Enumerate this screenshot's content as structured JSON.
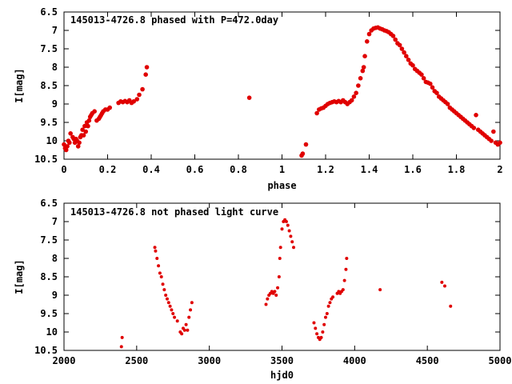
{
  "colors": {
    "points": "#e00000",
    "axes": "#000000",
    "background": "#ffffff"
  },
  "chart_data": [
    {
      "type": "scatter",
      "title": "145013-4726.8 phased with P=472.0day",
      "xlabel": "phase",
      "ylabel": "I[mag]",
      "xlim": [
        0,
        2
      ],
      "ylim": [
        6.5,
        10.5
      ],
      "y_inverted": true,
      "grid": false,
      "legend": "none",
      "xticks": [
        0,
        0.2,
        0.4,
        0.6,
        0.8,
        1,
        1.2,
        1.4,
        1.6,
        1.8,
        2
      ],
      "xtick_labels": [
        "0",
        "0.2",
        "0.4",
        "0.6",
        "0.8",
        "1",
        "1.2",
        "1.4",
        "1.6",
        "1.8",
        "2"
      ],
      "yticks": [
        6.5,
        7,
        7.5,
        8,
        8.5,
        9,
        9.5,
        10,
        10.5
      ],
      "ytick_labels": [
        "6.5",
        "7",
        "7.5",
        "8",
        "8.5",
        "9",
        "9.5",
        "10",
        "10.5"
      ],
      "points": [
        [
          0.0,
          10.1
        ],
        [
          0.005,
          10.2
        ],
        [
          0.01,
          10.25
        ],
        [
          0.015,
          10.15
        ],
        [
          0.02,
          10.0
        ],
        [
          0.025,
          10.05
        ],
        [
          0.03,
          9.8
        ],
        [
          0.04,
          9.9
        ],
        [
          0.045,
          9.95
        ],
        [
          0.05,
          10.05
        ],
        [
          0.055,
          9.95
        ],
        [
          0.06,
          10.0
        ],
        [
          0.065,
          10.15
        ],
        [
          0.07,
          10.05
        ],
        [
          0.075,
          9.9
        ],
        [
          0.08,
          9.85
        ],
        [
          0.085,
          9.7
        ],
        [
          0.09,
          9.85
        ],
        [
          0.095,
          9.6
        ],
        [
          0.1,
          9.75
        ],
        [
          0.105,
          9.5
        ],
        [
          0.11,
          9.6
        ],
        [
          0.115,
          9.45
        ],
        [
          0.12,
          9.35
        ],
        [
          0.125,
          9.3
        ],
        [
          0.13,
          9.25
        ],
        [
          0.14,
          9.2
        ],
        [
          0.15,
          9.45
        ],
        [
          0.16,
          9.4
        ],
        [
          0.165,
          9.35
        ],
        [
          0.17,
          9.3
        ],
        [
          0.175,
          9.25
        ],
        [
          0.18,
          9.2
        ],
        [
          0.19,
          9.15
        ],
        [
          0.2,
          9.15
        ],
        [
          0.21,
          9.1
        ],
        [
          0.25,
          8.97
        ],
        [
          0.26,
          8.93
        ],
        [
          0.27,
          8.95
        ],
        [
          0.28,
          8.92
        ],
        [
          0.29,
          8.95
        ],
        [
          0.3,
          8.9
        ],
        [
          0.31,
          8.97
        ],
        [
          0.32,
          8.93
        ],
        [
          0.335,
          8.87
        ],
        [
          0.345,
          8.75
        ],
        [
          0.36,
          8.6
        ],
        [
          0.375,
          8.2
        ],
        [
          0.38,
          8.0
        ],
        [
          0.85,
          8.83
        ],
        [
          1.09,
          10.4
        ],
        [
          1.095,
          10.35
        ],
        [
          1.11,
          10.1
        ],
        [
          1.16,
          9.25
        ],
        [
          1.17,
          9.15
        ],
        [
          1.18,
          9.12
        ],
        [
          1.19,
          9.1
        ],
        [
          1.2,
          9.05
        ],
        [
          1.21,
          9.0
        ],
        [
          1.22,
          8.97
        ],
        [
          1.23,
          8.95
        ],
        [
          1.24,
          8.93
        ],
        [
          1.25,
          8.95
        ],
        [
          1.26,
          8.92
        ],
        [
          1.27,
          8.95
        ],
        [
          1.28,
          8.9
        ],
        [
          1.29,
          8.95
        ],
        [
          1.3,
          9.0
        ],
        [
          1.31,
          8.95
        ],
        [
          1.32,
          8.9
        ],
        [
          1.33,
          8.8
        ],
        [
          1.34,
          8.7
        ],
        [
          1.35,
          8.5
        ],
        [
          1.36,
          8.3
        ],
        [
          1.37,
          8.1
        ],
        [
          1.375,
          8.0
        ],
        [
          1.38,
          7.7
        ],
        [
          1.39,
          7.3
        ],
        [
          1.4,
          7.1
        ],
        [
          1.41,
          7.0
        ],
        [
          1.42,
          6.95
        ],
        [
          1.43,
          6.93
        ],
        [
          1.44,
          6.92
        ],
        [
          1.45,
          6.95
        ],
        [
          1.46,
          6.97
        ],
        [
          1.47,
          7.0
        ],
        [
          1.48,
          7.02
        ],
        [
          1.49,
          7.05
        ],
        [
          1.5,
          7.1
        ],
        [
          1.51,
          7.15
        ],
        [
          1.52,
          7.25
        ],
        [
          1.53,
          7.35
        ],
        [
          1.54,
          7.4
        ],
        [
          1.55,
          7.5
        ],
        [
          1.56,
          7.6
        ],
        [
          1.57,
          7.7
        ],
        [
          1.58,
          7.8
        ],
        [
          1.59,
          7.9
        ],
        [
          1.6,
          7.95
        ],
        [
          1.61,
          8.05
        ],
        [
          1.62,
          8.1
        ],
        [
          1.63,
          8.15
        ],
        [
          1.64,
          8.2
        ],
        [
          1.65,
          8.3
        ],
        [
          1.66,
          8.4
        ],
        [
          1.67,
          8.42
        ],
        [
          1.68,
          8.45
        ],
        [
          1.69,
          8.55
        ],
        [
          1.7,
          8.65
        ],
        [
          1.71,
          8.7
        ],
        [
          1.72,
          8.8
        ],
        [
          1.73,
          8.85
        ],
        [
          1.74,
          8.9
        ],
        [
          1.75,
          8.95
        ],
        [
          1.76,
          9.0
        ],
        [
          1.77,
          9.1
        ],
        [
          1.78,
          9.15
        ],
        [
          1.79,
          9.2
        ],
        [
          1.8,
          9.25
        ],
        [
          1.81,
          9.3
        ],
        [
          1.82,
          9.35
        ],
        [
          1.83,
          9.4
        ],
        [
          1.84,
          9.45
        ],
        [
          1.85,
          9.5
        ],
        [
          1.86,
          9.55
        ],
        [
          1.87,
          9.6
        ],
        [
          1.88,
          9.65
        ],
        [
          1.89,
          9.3
        ],
        [
          1.9,
          9.7
        ],
        [
          1.91,
          9.75
        ],
        [
          1.92,
          9.8
        ],
        [
          1.93,
          9.85
        ],
        [
          1.94,
          9.9
        ],
        [
          1.95,
          9.95
        ],
        [
          1.96,
          10.0
        ],
        [
          1.97,
          9.75
        ],
        [
          1.98,
          10.05
        ],
        [
          1.99,
          10.1
        ],
        [
          2.0,
          10.05
        ]
      ]
    },
    {
      "type": "scatter",
      "title": "145013-4726.8 not phased light curve",
      "xlabel": "hjd0",
      "ylabel": "I[mag]",
      "xlim": [
        2000,
        5000
      ],
      "ylim": [
        6.5,
        10.5
      ],
      "y_inverted": true,
      "grid": false,
      "legend": "none",
      "xticks": [
        2000,
        2500,
        3000,
        3500,
        4000,
        4500,
        5000
      ],
      "xtick_labels": [
        "2000",
        "2500",
        "3000",
        "3500",
        "4000",
        "4500",
        "5000"
      ],
      "yticks": [
        6.5,
        7,
        7.5,
        8,
        8.5,
        9,
        9.5,
        10,
        10.5
      ],
      "ytick_labels": [
        "6.5",
        "7",
        "7.5",
        "8",
        "8.5",
        "9",
        "9.5",
        "10",
        "10.5"
      ],
      "points": [
        [
          2395,
          10.4
        ],
        [
          2400,
          10.15
        ],
        [
          2625,
          7.7
        ],
        [
          2630,
          7.8
        ],
        [
          2640,
          8.0
        ],
        [
          2650,
          8.2
        ],
        [
          2660,
          8.4
        ],
        [
          2670,
          8.5
        ],
        [
          2680,
          8.7
        ],
        [
          2690,
          8.85
        ],
        [
          2700,
          9.0
        ],
        [
          2710,
          9.1
        ],
        [
          2720,
          9.2
        ],
        [
          2730,
          9.3
        ],
        [
          2740,
          9.4
        ],
        [
          2750,
          9.5
        ],
        [
          2760,
          9.6
        ],
        [
          2780,
          9.7
        ],
        [
          2800,
          10.0
        ],
        [
          2810,
          10.05
        ],
        [
          2820,
          9.9
        ],
        [
          2830,
          9.95
        ],
        [
          2840,
          9.8
        ],
        [
          2850,
          9.95
        ],
        [
          2860,
          9.6
        ],
        [
          2870,
          9.4
        ],
        [
          2880,
          9.2
        ],
        [
          3390,
          9.25
        ],
        [
          3400,
          9.1
        ],
        [
          3410,
          9.0
        ],
        [
          3420,
          8.95
        ],
        [
          3430,
          8.9
        ],
        [
          3440,
          8.95
        ],
        [
          3450,
          8.9
        ],
        [
          3460,
          9.0
        ],
        [
          3470,
          8.8
        ],
        [
          3480,
          8.5
        ],
        [
          3485,
          8.0
        ],
        [
          3490,
          7.7
        ],
        [
          3500,
          7.2
        ],
        [
          3510,
          7.0
        ],
        [
          3520,
          6.95
        ],
        [
          3530,
          7.0
        ],
        [
          3540,
          7.1
        ],
        [
          3550,
          7.25
        ],
        [
          3560,
          7.4
        ],
        [
          3570,
          7.55
        ],
        [
          3580,
          7.7
        ],
        [
          3720,
          9.75
        ],
        [
          3730,
          9.9
        ],
        [
          3740,
          10.05
        ],
        [
          3750,
          10.15
        ],
        [
          3760,
          10.2
        ],
        [
          3770,
          10.15
        ],
        [
          3780,
          10.0
        ],
        [
          3790,
          9.8
        ],
        [
          3800,
          9.6
        ],
        [
          3810,
          9.5
        ],
        [
          3820,
          9.3
        ],
        [
          3830,
          9.2
        ],
        [
          3840,
          9.1
        ],
        [
          3850,
          9.05
        ],
        [
          3880,
          8.95
        ],
        [
          3890,
          8.9
        ],
        [
          3900,
          8.95
        ],
        [
          3910,
          8.9
        ],
        [
          3920,
          8.85
        ],
        [
          3930,
          8.6
        ],
        [
          3940,
          8.3
        ],
        [
          3945,
          8.0
        ],
        [
          4175,
          8.85
        ],
        [
          4600,
          8.65
        ],
        [
          4620,
          8.75
        ],
        [
          4660,
          9.3
        ]
      ]
    }
  ]
}
